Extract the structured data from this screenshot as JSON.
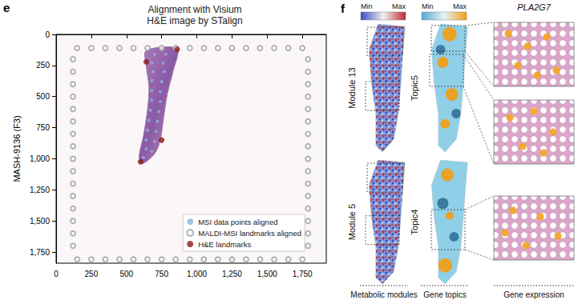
{
  "chart_data": {
    "type": "scatter",
    "panel_label": "e",
    "title": "Alignment with Visium\nH&E image by STalign",
    "y_label": "MASH-9136 (F3)",
    "xlim": [
      0,
      1920
    ],
    "xticks": [
      0,
      250,
      500,
      750,
      {
        "value": 1000,
        "label": "1,000"
      },
      {
        "value": 1250,
        "label": "1,250"
      },
      {
        "value": 1500,
        "label": "1,500"
      },
      {
        "value": 1750,
        "label": "1,750"
      }
    ],
    "ylim": [
      0,
      1840
    ],
    "yticks": [
      0,
      250,
      500,
      750,
      {
        "value": 1000,
        "label": "1,000"
      },
      {
        "value": 1250,
        "label": "1,250"
      },
      {
        "value": 1500,
        "label": "1,500"
      },
      {
        "value": 1750,
        "label": "1,750"
      }
    ],
    "grid": false,
    "legend": "lower right",
    "image_outline": [
      [
        640,
        130
      ],
      [
        860,
        115
      ],
      [
        830,
        300
      ],
      [
        790,
        480
      ],
      [
        760,
        700
      ],
      [
        740,
        850
      ],
      [
        700,
        960
      ],
      [
        610,
        1040
      ],
      [
        590,
        980
      ],
      [
        620,
        820
      ],
      [
        650,
        600
      ],
      [
        660,
        420
      ],
      [
        640,
        250
      ]
    ],
    "series": [
      {
        "name": "MSI data points aligned",
        "color": "#8fb3dc",
        "marker": "circle",
        "points": [
          [
            700,
            160
          ],
          [
            780,
            160
          ],
          [
            680,
            230
          ],
          [
            760,
            230
          ],
          [
            690,
            300
          ],
          [
            770,
            300
          ],
          [
            680,
            370
          ],
          [
            750,
            380
          ],
          [
            680,
            450
          ],
          [
            740,
            460
          ],
          [
            680,
            530
          ],
          [
            740,
            540
          ],
          [
            670,
            610
          ],
          [
            730,
            620
          ],
          [
            660,
            690
          ],
          [
            720,
            700
          ],
          [
            650,
            770
          ],
          [
            710,
            780
          ],
          [
            640,
            850
          ],
          [
            700,
            860
          ],
          [
            640,
            920
          ],
          [
            680,
            940
          ],
          [
            620,
            990
          ]
        ]
      },
      {
        "name": "MALDI-MSI landmarks aligned",
        "color": "#9aa0a6",
        "marker": "ring",
        "points": [
          [
            150,
            110
          ],
          [
            250,
            110
          ],
          [
            350,
            110
          ],
          [
            450,
            110
          ],
          [
            550,
            110
          ],
          [
            650,
            110
          ],
          [
            750,
            110
          ],
          [
            850,
            110
          ],
          [
            950,
            110
          ],
          [
            1050,
            110
          ],
          [
            1150,
            110
          ],
          [
            1250,
            110
          ],
          [
            1350,
            110
          ],
          [
            1450,
            110
          ],
          [
            1550,
            110
          ],
          [
            1650,
            110
          ],
          [
            1750,
            110
          ],
          [
            150,
            1810
          ],
          [
            250,
            1810
          ],
          [
            350,
            1810
          ],
          [
            450,
            1810
          ],
          [
            550,
            1810
          ],
          [
            650,
            1810
          ],
          [
            750,
            1810
          ],
          [
            850,
            1810
          ],
          [
            950,
            1810
          ],
          [
            1050,
            1810
          ],
          [
            1150,
            1810
          ],
          [
            1250,
            1810
          ],
          [
            1350,
            1810
          ],
          [
            1450,
            1810
          ],
          [
            1550,
            1810
          ],
          [
            1650,
            1810
          ],
          [
            1750,
            1810
          ],
          [
            120,
            200
          ],
          [
            120,
            300
          ],
          [
            120,
            400
          ],
          [
            120,
            500
          ],
          [
            120,
            600
          ],
          [
            120,
            700
          ],
          [
            120,
            800
          ],
          [
            120,
            900
          ],
          [
            120,
            1000
          ],
          [
            120,
            1100
          ],
          [
            120,
            1200
          ],
          [
            120,
            1300
          ],
          [
            120,
            1400
          ],
          [
            120,
            1500
          ],
          [
            120,
            1600
          ],
          [
            120,
            1700
          ],
          [
            1790,
            200
          ],
          [
            1790,
            300
          ],
          [
            1790,
            400
          ],
          [
            1790,
            500
          ],
          [
            1790,
            600
          ],
          [
            1790,
            700
          ],
          [
            1790,
            800
          ],
          [
            1790,
            900
          ],
          [
            1790,
            1000
          ],
          [
            1790,
            1100
          ],
          [
            1790,
            1200
          ],
          [
            1790,
            1300
          ],
          [
            1790,
            1400
          ],
          [
            1790,
            1500
          ],
          [
            1790,
            1600
          ],
          [
            1790,
            1700
          ]
        ]
      },
      {
        "name": "H&E landmarks",
        "color": "#8b1a1a",
        "marker": "circle",
        "points": [
          [
            860,
            120
          ],
          [
            640,
            220
          ],
          [
            750,
            850
          ],
          [
            600,
            1025
          ]
        ]
      }
    ]
  },
  "panel_f": {
    "panel_label": "f",
    "columns": [
      {
        "caption": "Metabolic modules",
        "colorbar": {
          "labels": [
            "Min",
            "Max"
          ],
          "colors": [
            "#3b4cc0",
            "#f2f2f2",
            "#c0282d"
          ]
        },
        "maps": [
          "Module 13",
          "Module 5"
        ]
      },
      {
        "caption": "Gene topics",
        "colorbar": {
          "labels": [
            "Min",
            "Max"
          ],
          "colors": [
            "#4fa9cf",
            "#e8f4f8",
            "#f39c12"
          ]
        },
        "maps": [
          "Topic5",
          "Topic4"
        ]
      },
      {
        "caption": "Gene expression",
        "gene": "PLA2G7",
        "zoom_count": 3
      }
    ]
  }
}
